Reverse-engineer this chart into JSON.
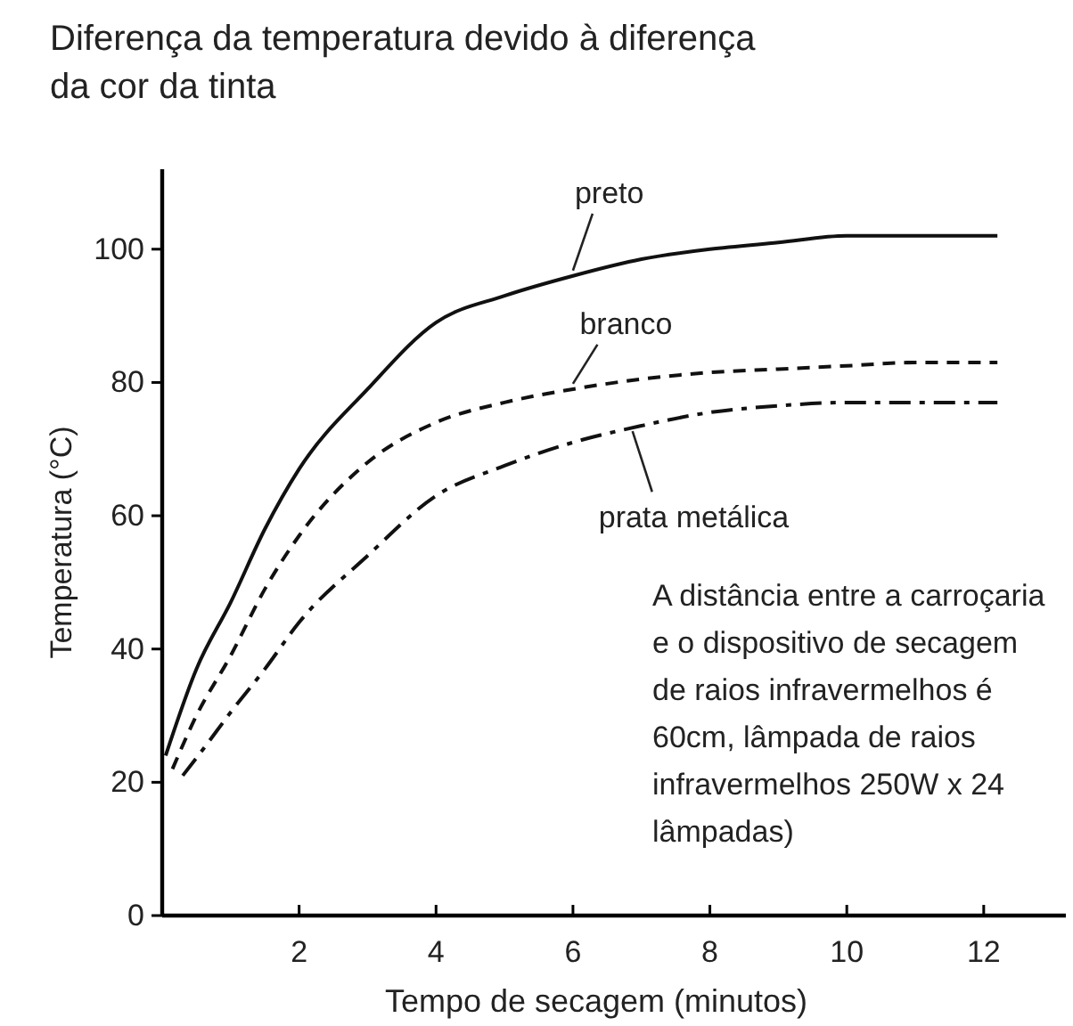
{
  "chart_data": {
    "type": "line",
    "title": "Diferença da temperatura devido à diferença da cor da tinta",
    "xlabel": "Tempo de secagem (minutos)",
    "ylabel": "Temperatura (°C)",
    "xlim": [
      0,
      13.2
    ],
    "ylim": [
      0,
      112
    ],
    "xticks": [
      2,
      4,
      6,
      8,
      10,
      12
    ],
    "yticks": [
      0,
      20,
      40,
      60,
      80,
      100
    ],
    "grid": false,
    "legend": false,
    "marker": "none",
    "series": [
      {
        "name": "preto",
        "color": "#111111",
        "line_style": "solid",
        "x": [
          0.05,
          0.5,
          1,
          1.5,
          2,
          3,
          4,
          5,
          6,
          7,
          8,
          9,
          10,
          11,
          12.2
        ],
        "values": [
          24,
          37,
          47,
          58,
          67,
          79,
          89,
          93,
          96,
          98.5,
          100,
          101,
          102,
          102,
          102
        ]
      },
      {
        "name": "branco",
        "color": "#111111",
        "line_style": "dashed",
        "x": [
          0.15,
          0.5,
          1,
          1.5,
          2,
          3,
          4,
          5,
          6,
          7,
          8,
          9,
          10,
          11,
          12.2
        ],
        "values": [
          22,
          30,
          39,
          49,
          57,
          68,
          74,
          77,
          79,
          80.5,
          81.5,
          82,
          82.5,
          83,
          83
        ]
      },
      {
        "name": "prata metálica",
        "color": "#111111",
        "line_style": "dashdot",
        "x": [
          0.3,
          0.6,
          1,
          1.5,
          2,
          3,
          4,
          5,
          6,
          7,
          8,
          9,
          10,
          11,
          12.2
        ],
        "values": [
          21,
          25,
          30.5,
          37,
          44,
          54,
          63,
          67.5,
          71,
          73.5,
          75.5,
          76.5,
          77,
          77,
          77
        ]
      }
    ],
    "annotations": [
      "A distância entre a carroçaria e o dispositivo de secagem de raios infravermelhos é 60cm, lâmpada de raios infravermelhos 250W x 24 lâmpadas)"
    ]
  }
}
